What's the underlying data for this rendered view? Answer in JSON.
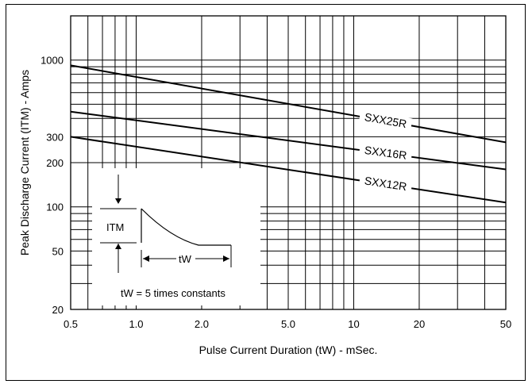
{
  "chart_data": {
    "type": "line",
    "title": "",
    "xlabel": "Pulse Current Duration (tW) - mSec.",
    "ylabel": "Peak Discharge Current (ITM) - Amps",
    "xscale": "log",
    "yscale": "log",
    "xlim": [
      0.5,
      50
    ],
    "ylim": [
      20,
      2000
    ],
    "grid": true,
    "x_tick_labels": [
      "0.5",
      "1.0",
      "2.0",
      "5.0",
      "10",
      "20",
      "50"
    ],
    "y_tick_labels": [
      "20",
      "50",
      "100",
      "200",
      "300",
      "1000"
    ],
    "series": [
      {
        "name": "SXX25R",
        "x": [
          0.5,
          50
        ],
        "y": [
          920,
          275
        ]
      },
      {
        "name": "SXX16R",
        "x": [
          0.5,
          50
        ],
        "y": [
          445,
          180
        ]
      },
      {
        "name": "SXX12R",
        "x": [
          0.5,
          50
        ],
        "y": [
          300,
          107
        ]
      }
    ],
    "inset": {
      "pulse_label": "ITM",
      "duration_label": "tW",
      "note": "tW = 5 times constants"
    }
  }
}
